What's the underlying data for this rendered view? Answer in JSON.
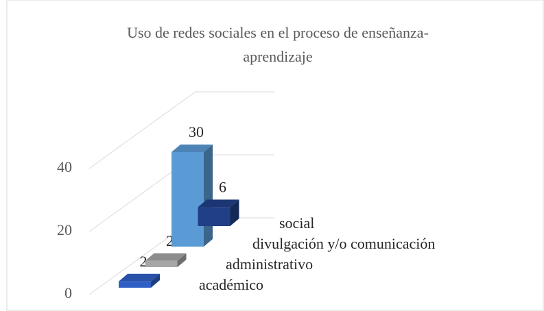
{
  "chart_data": {
    "type": "bar3d",
    "title": [
      "Uso de redes sociales en el proceso de enseñanza-",
      "aprendizaje"
    ],
    "categories": [
      "académico",
      "administrativo",
      "divulgación y/o comunicación",
      "social"
    ],
    "values": [
      2,
      2,
      30,
      6
    ],
    "colors": [
      "#2f5fc4",
      "#a6a6a6",
      "#5b9bd5",
      "#203f86"
    ],
    "ylim": [
      0,
      40
    ],
    "yticks": [
      0,
      20,
      40
    ],
    "grid": true
  }
}
